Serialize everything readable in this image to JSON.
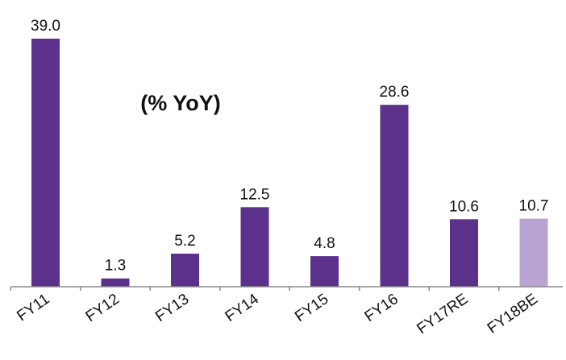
{
  "chart_data": {
    "type": "bar",
    "title": "(% YoY)",
    "xlabel": "",
    "ylabel": "",
    "categories": [
      "FY11",
      "FY12",
      "FY13",
      "FY14",
      "FY15",
      "FY16",
      "FY17RE",
      "FY18BE"
    ],
    "series": [
      {
        "values": [
          39.0,
          1.3,
          5.2,
          12.5,
          4.8,
          28.6,
          10.6,
          10.7
        ],
        "value_labels": [
          "39.0",
          "1.3",
          "5.2",
          "12.5",
          "4.8",
          "28.6",
          "10.6",
          "10.7"
        ]
      }
    ],
    "ylim": [
      0,
      39.0
    ],
    "grid": false,
    "legend": "none",
    "colors": {
      "bar": "#5B318C",
      "highlight_bar": "#B9A3D3",
      "axis": "#888888"
    },
    "highlight_index": 7
  }
}
